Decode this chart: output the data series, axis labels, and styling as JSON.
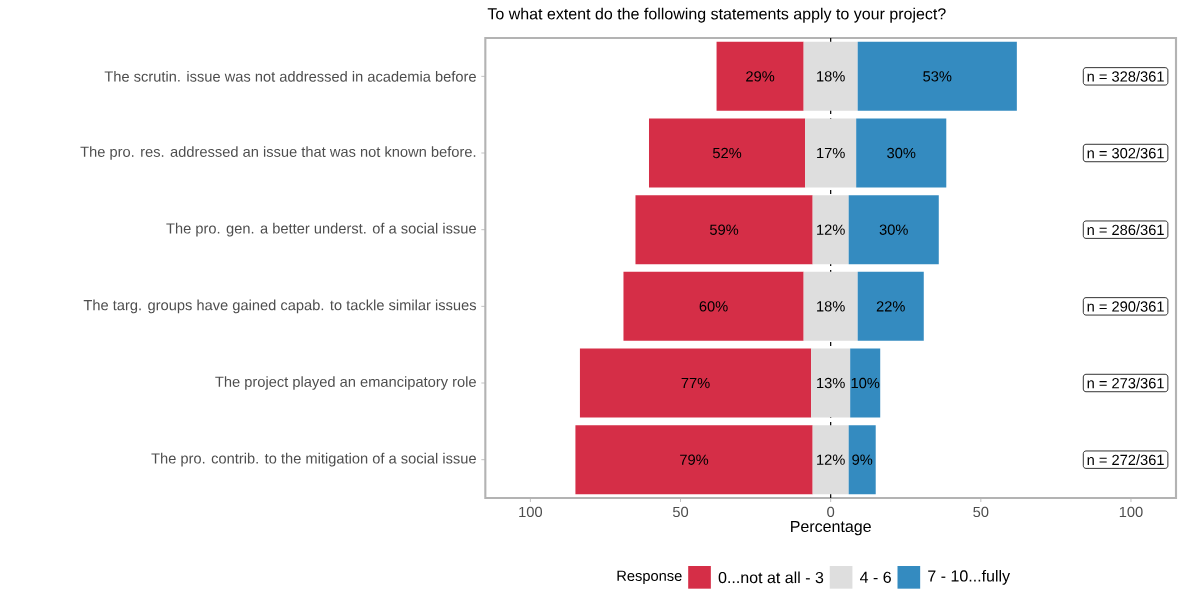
{
  "chart_data": {
    "type": "bar",
    "orientation": "horizontal",
    "title": "To what extent do the following statements apply to your project?",
    "xlabel": "Percentage",
    "legend_title": "Response",
    "legend": "bottom",
    "grid": false,
    "categories": [
      "The scrutin. issue was not addressed in academia before",
      "The pro. res. addressed an issue that was not known before.",
      "The pro. gen. a better underst. of a social issue",
      "The targ. groups have gained capab. to tackle similar issues",
      "The project played an emancipatory role",
      "The pro. contrib. to the mitigation of a social issue"
    ],
    "series": [
      {
        "name": "0...not at all - 3",
        "color": "#d52e47",
        "base": [
          -38,
          -60.5,
          -65,
          -69,
          -83.5,
          -85
        ],
        "values": [
          29,
          52,
          59,
          60,
          77,
          79
        ],
        "value_labels": [
          "29%",
          "52%",
          "59%",
          "60%",
          "77%",
          "79%"
        ]
      },
      {
        "name": "4 - 6",
        "color": "#dedede",
        "base": [
          -9,
          -8.5,
          -6,
          -9,
          -6.5,
          -6
        ],
        "values": [
          18,
          17,
          12,
          18,
          13,
          12
        ],
        "value_labels": [
          "18%",
          "17%",
          "12%",
          "18%",
          "13%",
          "12%"
        ]
      },
      {
        "name": "7 - 10...fully",
        "color": "#348bc0",
        "base": [
          9,
          8.5,
          6,
          9,
          6.5,
          6
        ],
        "values": [
          53,
          30,
          30,
          22,
          10,
          9
        ],
        "value_labels": [
          "53%",
          "30%",
          "30%",
          "22%",
          "10%",
          "9%"
        ]
      }
    ],
    "xlim": [
      -115,
      115
    ],
    "xticks": [
      {
        "value": -100,
        "label": "100"
      },
      {
        "value": -50,
        "label": "50"
      },
      0,
      50,
      100
    ],
    "ref_lines": [
      {
        "axis": "x",
        "value": 0,
        "line_style": "dashed",
        "color": "#000000"
      }
    ],
    "annotations": [
      "n = 328/361",
      "n = 302/361",
      "n = 286/361",
      "n = 290/361",
      "n = 273/361",
      "n = 272/361"
    ]
  }
}
